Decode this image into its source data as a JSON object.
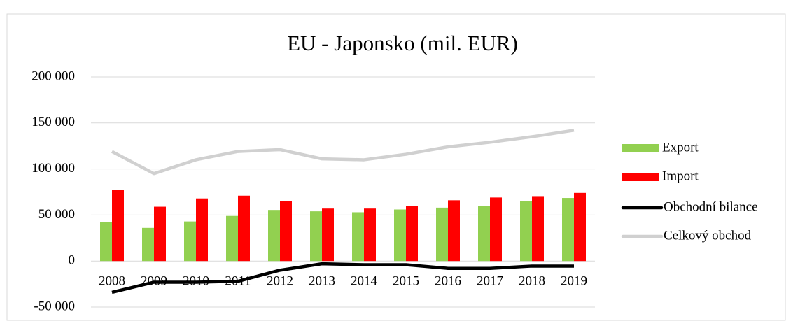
{
  "chart_data": {
    "type": "bar_line",
    "title": "EU - Japonsko (mil. EUR)",
    "categories": [
      "2008",
      "2009",
      "2010",
      "2011",
      "2012",
      "2013",
      "2014",
      "2015",
      "2016",
      "2017",
      "2018",
      "2019"
    ],
    "series": [
      {
        "name": "Export",
        "type": "bar",
        "color": "#92d050",
        "values": [
          42000,
          36000,
          43000,
          49000,
          55500,
          54000,
          53000,
          56000,
          58000,
          60000,
          65000,
          68500
        ]
      },
      {
        "name": "Import",
        "type": "bar",
        "color": "#ff0000",
        "values": [
          77000,
          59000,
          68000,
          71000,
          65500,
          57000,
          57000,
          60000,
          66000,
          69000,
          70500,
          74000
        ]
      },
      {
        "name": "Obchodní bilance",
        "type": "line",
        "color": "#000000",
        "values": [
          -34000,
          -23000,
          -23000,
          -22000,
          -10000,
          -3000,
          -4000,
          -4000,
          -8000,
          -8000,
          -5500,
          -5500
        ]
      },
      {
        "name": "Celkový obchod",
        "type": "line",
        "color": "#d0d0d0",
        "values": [
          119000,
          95000,
          110000,
          119000,
          121000,
          111000,
          110000,
          116000,
          124000,
          129000,
          135000,
          142000
        ]
      }
    ],
    "ylim": [
      -50000,
      200000
    ],
    "yticks": [
      {
        "value": -50000,
        "label": "-50 000"
      },
      0,
      {
        "value": 50000,
        "label": "50 000"
      },
      {
        "value": 100000,
        "label": "100 000"
      },
      {
        "value": 150000,
        "label": "150 000"
      },
      {
        "value": 200000,
        "label": "200 000"
      }
    ],
    "grid": true,
    "legend": "right"
  }
}
